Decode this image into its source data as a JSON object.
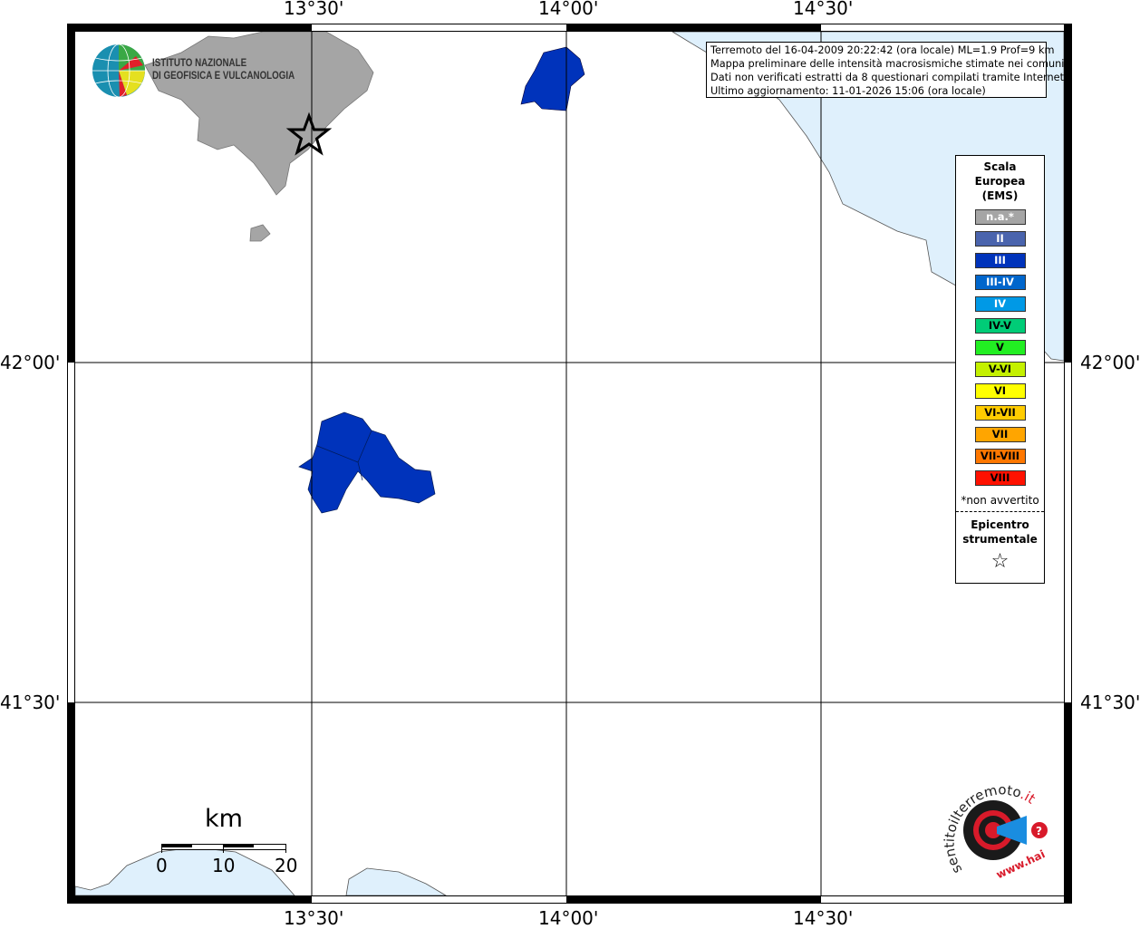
{
  "map": {
    "longitude_labels": [
      "13°30'",
      "14°00'",
      "14°30'"
    ],
    "latitude_labels": [
      "42°00'",
      "41°30'"
    ],
    "colors": {
      "land": "#ffffff",
      "sea": "#dff0fc",
      "not_felt": "#a5a5a5",
      "intensity_III": "#0033bb"
    },
    "felt_areas": [
      {
        "intensity": "III",
        "description_shown": "polygon"
      },
      {
        "intensity": "III",
        "description_shown": "polygon"
      }
    ],
    "epicenter_icon": "star-icon"
  },
  "info": {
    "line1": "Terremoto del 16-04-2009 20:22:42 (ora locale) ML=1.9 Prof=9 km",
    "line2": "Mappa preliminare delle intensità macrosismiche stimate nei comuni",
    "line3": "Dati non verificati estratti da 8 questionari compilati tramite Internet.",
    "line4": "Ultimo aggiornamento: 11-01-2026 15:06 (ora locale)"
  },
  "legend": {
    "title_line1": "Scala",
    "title_line2": "Europea",
    "title_line3": "(EMS)",
    "items": [
      {
        "label": "n.a.*",
        "color": "#a5a5a5",
        "text_color": "#ffffff"
      },
      {
        "label": "II",
        "color": "#4a64ad",
        "text_color": "#ffffff"
      },
      {
        "label": "III",
        "color": "#0033bb",
        "text_color": "#ffffff"
      },
      {
        "label": "III-IV",
        "color": "#0066cc",
        "text_color": "#ffffff"
      },
      {
        "label": "IV",
        "color": "#0099e6",
        "text_color": "#ffffff"
      },
      {
        "label": "IV-V",
        "color": "#00cc77",
        "text_color": "#000000"
      },
      {
        "label": "V",
        "color": "#22ee22",
        "text_color": "#000000"
      },
      {
        "label": "V-VI",
        "color": "#c4f000",
        "text_color": "#000000"
      },
      {
        "label": "VI",
        "color": "#ffff00",
        "text_color": "#000000"
      },
      {
        "label": "VI-VII",
        "color": "#ffcc00",
        "text_color": "#000000"
      },
      {
        "label": "VII",
        "color": "#ffa500",
        "text_color": "#000000"
      },
      {
        "label": "VII-VIII",
        "color": "#ff7700",
        "text_color": "#000000"
      },
      {
        "label": "VIII",
        "color": "#ff1100",
        "text_color": "#000000"
      }
    ],
    "note": "*non avvertito",
    "epicenter_line1": "Epicentro",
    "epicenter_line2": "strumentale",
    "epicenter_symbol": "☆"
  },
  "scale_bar": {
    "unit": "km",
    "labels": [
      "0",
      "10",
      "20"
    ]
  },
  "logos": {
    "ingv": "ISTITUTO NAZIONALE DI GEOFISICA E VULCANOLOGIA",
    "ingv_line1": "ISTITUTO NAZIONALE",
    "ingv_line2": "DI GEOFISICA E VULCANOLOGIA",
    "hsit": "www.haisentitoilterremoto.it"
  }
}
